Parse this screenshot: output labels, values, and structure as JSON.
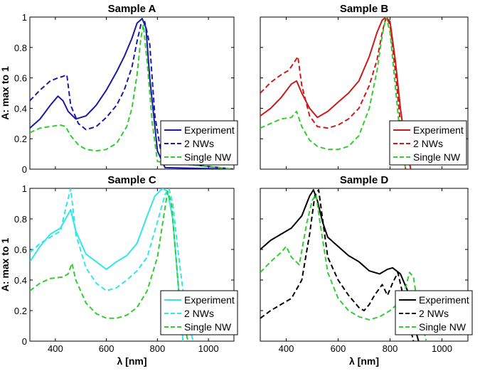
{
  "chart_data": [
    {
      "type": "line",
      "title": "Sample A",
      "xlabel": "",
      "ylabel": "A: max to 1",
      "xlim": [
        300,
        1100
      ],
      "ylim": [
        0,
        1
      ],
      "xticks": [],
      "yticks": [
        "0",
        "0.2",
        "0.4",
        "0.6",
        "0.8",
        "1"
      ],
      "legend": [
        "Experiment",
        "2 NWs",
        "Single NW"
      ],
      "legend_position": "bottom-right",
      "series": [
        {
          "name": "Experiment",
          "color": "#1a1aa6",
          "dash": "solid",
          "x": [
            300,
            340,
            380,
            410,
            430,
            450,
            480,
            520,
            560,
            600,
            640,
            670,
            700,
            720,
            740,
            755,
            770,
            800,
            830,
            1100
          ],
          "y": [
            0.27,
            0.33,
            0.42,
            0.48,
            0.45,
            0.38,
            0.33,
            0.35,
            0.42,
            0.52,
            0.64,
            0.74,
            0.86,
            0.96,
            0.99,
            0.93,
            0.6,
            0.12,
            0.01,
            0.0
          ]
        },
        {
          "name": "2 NWs",
          "color": "#1a1aa6",
          "dash": "dashed",
          "x": [
            300,
            340,
            380,
            410,
            430,
            445,
            460,
            490,
            520,
            560,
            600,
            640,
            670,
            700,
            720,
            735,
            750,
            770,
            790,
            820,
            1100
          ],
          "y": [
            0.45,
            0.52,
            0.58,
            0.6,
            0.61,
            0.62,
            0.42,
            0.3,
            0.26,
            0.28,
            0.34,
            0.42,
            0.52,
            0.67,
            0.84,
            0.95,
            0.97,
            0.82,
            0.35,
            0.05,
            0.0
          ]
        },
        {
          "name": "Single NW",
          "color": "#33cc33",
          "dash": "dashed",
          "x": [
            300,
            340,
            380,
            420,
            440,
            460,
            490,
            520,
            560,
            600,
            640,
            680,
            700,
            720,
            735,
            745,
            760,
            780,
            800,
            1100
          ],
          "y": [
            0.24,
            0.27,
            0.28,
            0.29,
            0.28,
            0.22,
            0.16,
            0.13,
            0.12,
            0.13,
            0.17,
            0.28,
            0.4,
            0.62,
            0.86,
            0.95,
            0.7,
            0.3,
            0.05,
            0.0
          ]
        }
      ]
    },
    {
      "type": "line",
      "title": "Sample B",
      "xlabel": "",
      "ylabel": "",
      "xlim": [
        300,
        1100
      ],
      "ylim": [
        0,
        1
      ],
      "xticks": [],
      "yticks": [],
      "legend": [
        "Experiment",
        "2 NWs",
        "Single NW"
      ],
      "legend_position": "bottom-right",
      "series": [
        {
          "name": "Experiment",
          "color": "#cc1a1a",
          "dash": "solid",
          "x": [
            300,
            340,
            380,
            420,
            440,
            460,
            490,
            520,
            560,
            600,
            640,
            680,
            720,
            750,
            770,
            785,
            800,
            820,
            840,
            860,
            880
          ],
          "y": [
            0.35,
            0.4,
            0.47,
            0.56,
            0.58,
            0.5,
            0.4,
            0.34,
            0.38,
            0.44,
            0.5,
            0.58,
            0.74,
            0.9,
            0.98,
            1.0,
            0.97,
            0.72,
            0.4,
            0.15,
            0.0
          ]
        },
        {
          "name": "2 NWs",
          "color": "#cc1a1a",
          "dash": "dashed",
          "x": [
            300,
            340,
            380,
            410,
            430,
            445,
            460,
            490,
            520,
            560,
            600,
            640,
            680,
            720,
            750,
            770,
            785,
            800,
            820,
            840,
            860
          ],
          "y": [
            0.5,
            0.57,
            0.62,
            0.65,
            0.7,
            0.74,
            0.55,
            0.35,
            0.28,
            0.27,
            0.29,
            0.33,
            0.4,
            0.55,
            0.72,
            0.9,
            1.0,
            0.95,
            0.65,
            0.3,
            0.0
          ]
        },
        {
          "name": "Single NW",
          "color": "#33cc33",
          "dash": "dashed",
          "x": [
            300,
            340,
            380,
            420,
            440,
            460,
            490,
            520,
            560,
            600,
            640,
            680,
            720,
            750,
            770,
            785,
            800,
            820,
            840,
            860
          ],
          "y": [
            0.27,
            0.3,
            0.33,
            0.34,
            0.38,
            0.28,
            0.19,
            0.15,
            0.13,
            0.13,
            0.15,
            0.22,
            0.4,
            0.65,
            0.88,
            1.0,
            0.9,
            0.55,
            0.2,
            0.0
          ]
        }
      ]
    },
    {
      "type": "line",
      "title": "Sample C",
      "xlabel": "λ [nm]",
      "ylabel": "A: max to 1",
      "xlim": [
        300,
        1100
      ],
      "ylim": [
        0,
        1
      ],
      "xticks": [
        "400",
        "600",
        "800",
        "1000"
      ],
      "yticks": [
        "0",
        "0.2",
        "0.4",
        "0.6",
        "0.8",
        "1"
      ],
      "legend": [
        "Experiment",
        "2 NWs",
        "Single NW"
      ],
      "legend_position": "bottom-right",
      "series": [
        {
          "name": "Experiment",
          "color": "#33e6e6",
          "dash": "solid",
          "x": [
            300,
            340,
            380,
            420,
            440,
            460,
            480,
            520,
            560,
            600,
            640,
            680,
            720,
            760,
            790,
            820,
            840,
            860,
            880,
            900
          ],
          "y": [
            0.52,
            0.62,
            0.7,
            0.74,
            0.8,
            0.86,
            0.72,
            0.57,
            0.52,
            0.47,
            0.52,
            0.56,
            0.64,
            0.82,
            0.95,
            1.0,
            0.98,
            0.8,
            0.4,
            0.0
          ]
        },
        {
          "name": "2 NWs",
          "color": "#33e6e6",
          "dash": "dashed",
          "x": [
            300,
            340,
            380,
            420,
            445,
            460,
            480,
            520,
            560,
            600,
            640,
            680,
            720,
            760,
            800,
            830,
            845,
            860,
            880,
            910,
            940
          ],
          "y": [
            0.58,
            0.64,
            0.68,
            0.72,
            0.9,
            1.0,
            0.7,
            0.48,
            0.38,
            0.33,
            0.35,
            0.4,
            0.46,
            0.55,
            0.78,
            0.96,
            1.0,
            0.9,
            0.6,
            0.2,
            0.0
          ]
        },
        {
          "name": "Single NW",
          "color": "#33cc33",
          "dash": "dashed",
          "x": [
            300,
            340,
            380,
            430,
            450,
            465,
            480,
            520,
            560,
            600,
            640,
            680,
            720,
            760,
            800,
            825,
            840,
            855,
            870,
            890,
            920
          ],
          "y": [
            0.33,
            0.38,
            0.41,
            0.42,
            0.44,
            0.51,
            0.4,
            0.25,
            0.18,
            0.15,
            0.15,
            0.17,
            0.22,
            0.33,
            0.55,
            0.82,
            0.98,
            0.9,
            0.6,
            0.2,
            0.0
          ]
        }
      ]
    },
    {
      "type": "line",
      "title": "Sample D",
      "xlabel": "λ [nm]",
      "ylabel": "",
      "xlim": [
        300,
        1100
      ],
      "ylim": [
        0,
        1
      ],
      "xticks": [
        "400",
        "600",
        "800",
        "1000"
      ],
      "yticks": [],
      "legend": [
        "Experiment",
        "2 NWs",
        "Single NW"
      ],
      "legend_position": "bottom-right",
      "series": [
        {
          "name": "Experiment",
          "color": "#000000",
          "dash": "solid",
          "x": [
            300,
            340,
            380,
            420,
            460,
            490,
            505,
            520,
            540,
            560,
            600,
            640,
            680,
            720,
            760,
            790,
            810,
            840,
            870,
            890,
            910
          ],
          "y": [
            0.6,
            0.66,
            0.7,
            0.74,
            0.82,
            0.95,
            0.99,
            0.92,
            0.78,
            0.68,
            0.62,
            0.56,
            0.52,
            0.46,
            0.44,
            0.47,
            0.48,
            0.44,
            0.32,
            0.12,
            0.0
          ]
        },
        {
          "name": "2 NWs",
          "color": "#000000",
          "dash": "dashed",
          "x": [
            300,
            340,
            380,
            420,
            460,
            490,
            510,
            525,
            540,
            560,
            600,
            640,
            680,
            700,
            720,
            740,
            770,
            790,
            810,
            830,
            850,
            870,
            890
          ],
          "y": [
            0.15,
            0.2,
            0.24,
            0.28,
            0.4,
            0.7,
            0.95,
            0.99,
            0.8,
            0.55,
            0.4,
            0.3,
            0.22,
            0.2,
            0.24,
            0.3,
            0.37,
            0.3,
            0.38,
            0.45,
            0.3,
            0.15,
            0.0
          ]
        },
        {
          "name": "Single NW",
          "color": "#33cc33",
          "dash": "dashed",
          "x": [
            300,
            340,
            380,
            400,
            420,
            450,
            480,
            500,
            515,
            530,
            560,
            600,
            640,
            680,
            720,
            760,
            800,
            840,
            860,
            875,
            890,
            910,
            940
          ],
          "y": [
            0.45,
            0.52,
            0.58,
            0.62,
            0.55,
            0.5,
            0.78,
            0.92,
            0.96,
            0.78,
            0.45,
            0.28,
            0.2,
            0.16,
            0.14,
            0.16,
            0.2,
            0.26,
            0.35,
            0.45,
            0.42,
            0.2,
            0.0
          ]
        }
      ]
    }
  ]
}
